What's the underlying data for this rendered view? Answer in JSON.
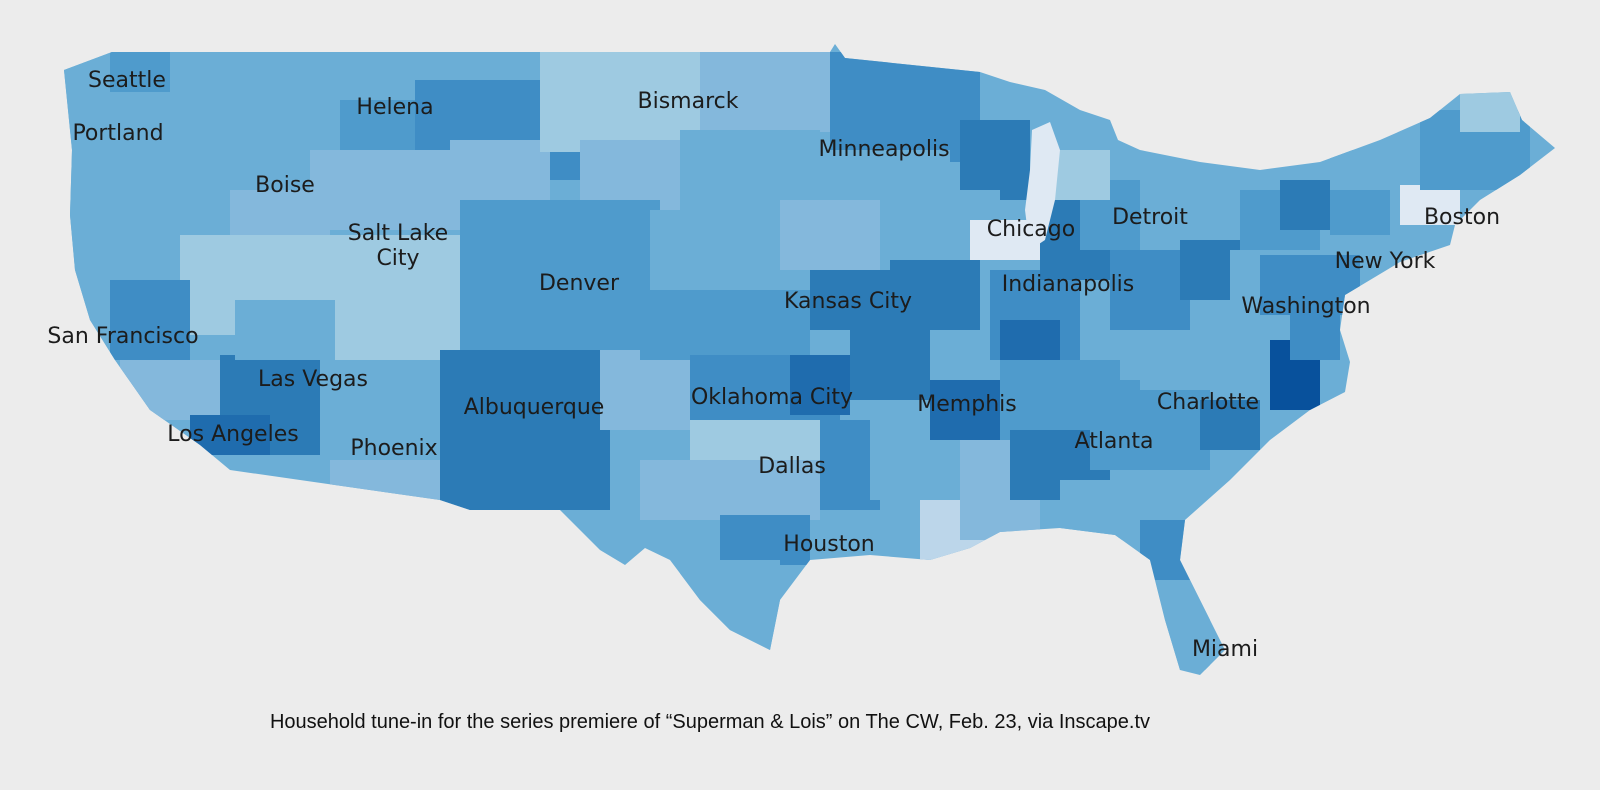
{
  "caption": "Household tune-in for the series premiere of “Superman & Lois” on The CW, Feb. 23, via Inscape.tv",
  "colors": {
    "background": "#ececec",
    "scale": [
      "#dfe9f3",
      "#bcd6ea",
      "#9ecae1",
      "#84b8dc",
      "#6baed6",
      "#4f9bcc",
      "#3f8dc5",
      "#2c7bb6",
      "#1f6cae",
      "#08519c"
    ]
  },
  "cities": [
    {
      "id": "seattle",
      "label": "Seattle"
    },
    {
      "id": "portland",
      "label": "Portland"
    },
    {
      "id": "boise",
      "label": "Boise"
    },
    {
      "id": "helena",
      "label": "Helena"
    },
    {
      "id": "bismarck",
      "label": "Bismarck"
    },
    {
      "id": "minneapolis",
      "label": "Minneapolis"
    },
    {
      "id": "salt-lake-city-line1",
      "label": "Salt Lake"
    },
    {
      "id": "salt-lake-city-line2",
      "label": "City"
    },
    {
      "id": "denver",
      "label": "Denver"
    },
    {
      "id": "chicago",
      "label": "Chicago"
    },
    {
      "id": "detroit",
      "label": "Detroit"
    },
    {
      "id": "boston",
      "label": "Boston"
    },
    {
      "id": "new-york",
      "label": "New York"
    },
    {
      "id": "indianapolis",
      "label": "Indianapolis"
    },
    {
      "id": "kansas-city",
      "label": "Kansas City"
    },
    {
      "id": "washington",
      "label": "Washington"
    },
    {
      "id": "san-francisco",
      "label": "San Francisco"
    },
    {
      "id": "las-vegas",
      "label": "Las Vegas"
    },
    {
      "id": "albuquerque",
      "label": "Albuquerque"
    },
    {
      "id": "oklahoma-city",
      "label": "Oklahoma City"
    },
    {
      "id": "memphis",
      "label": "Memphis"
    },
    {
      "id": "charlotte",
      "label": "Charlotte"
    },
    {
      "id": "los-angeles",
      "label": "Los Angeles"
    },
    {
      "id": "phoenix",
      "label": "Phoenix"
    },
    {
      "id": "atlanta",
      "label": "Atlanta"
    },
    {
      "id": "dallas",
      "label": "Dallas"
    },
    {
      "id": "houston",
      "label": "Houston"
    },
    {
      "id": "miami",
      "label": "Miami"
    }
  ]
}
